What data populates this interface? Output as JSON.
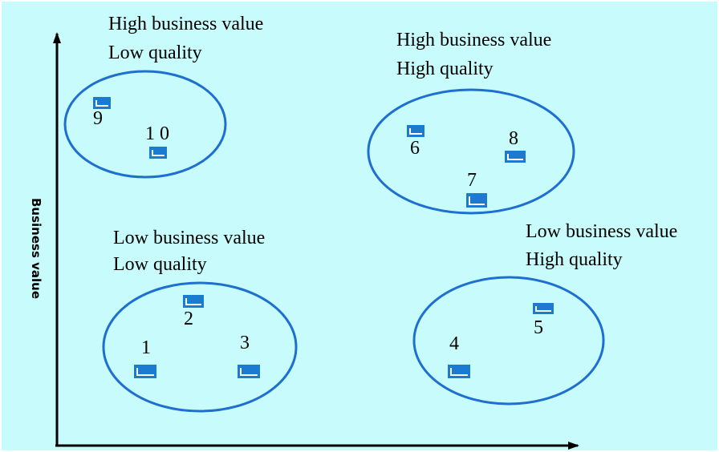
{
  "axes": {
    "y_label": "Business value",
    "x_label": ""
  },
  "colors": {
    "background": "#c8fbfb",
    "ellipse_stroke": "#1e6fd0",
    "system_fill": "#1a7bd0",
    "system_inner": "#ffffff"
  },
  "quadrants": {
    "high_value_low_quality": {
      "line1": "High business value",
      "line2": "Low quality"
    },
    "high_value_high_quality": {
      "line1": "High business value",
      "line2": "High quality"
    },
    "low_value_low_quality": {
      "line1": "Low business value",
      "line2": "Low quality"
    },
    "low_value_high_quality": {
      "line1": "Low business value",
      "line2": "High quality"
    }
  },
  "systems": {
    "s1": "1",
    "s2": "2",
    "s3": "3",
    "s4": "4",
    "s5": "5",
    "s6": "6",
    "s7": "7",
    "s8": "8",
    "s9": "9",
    "s10": "1 0"
  }
}
